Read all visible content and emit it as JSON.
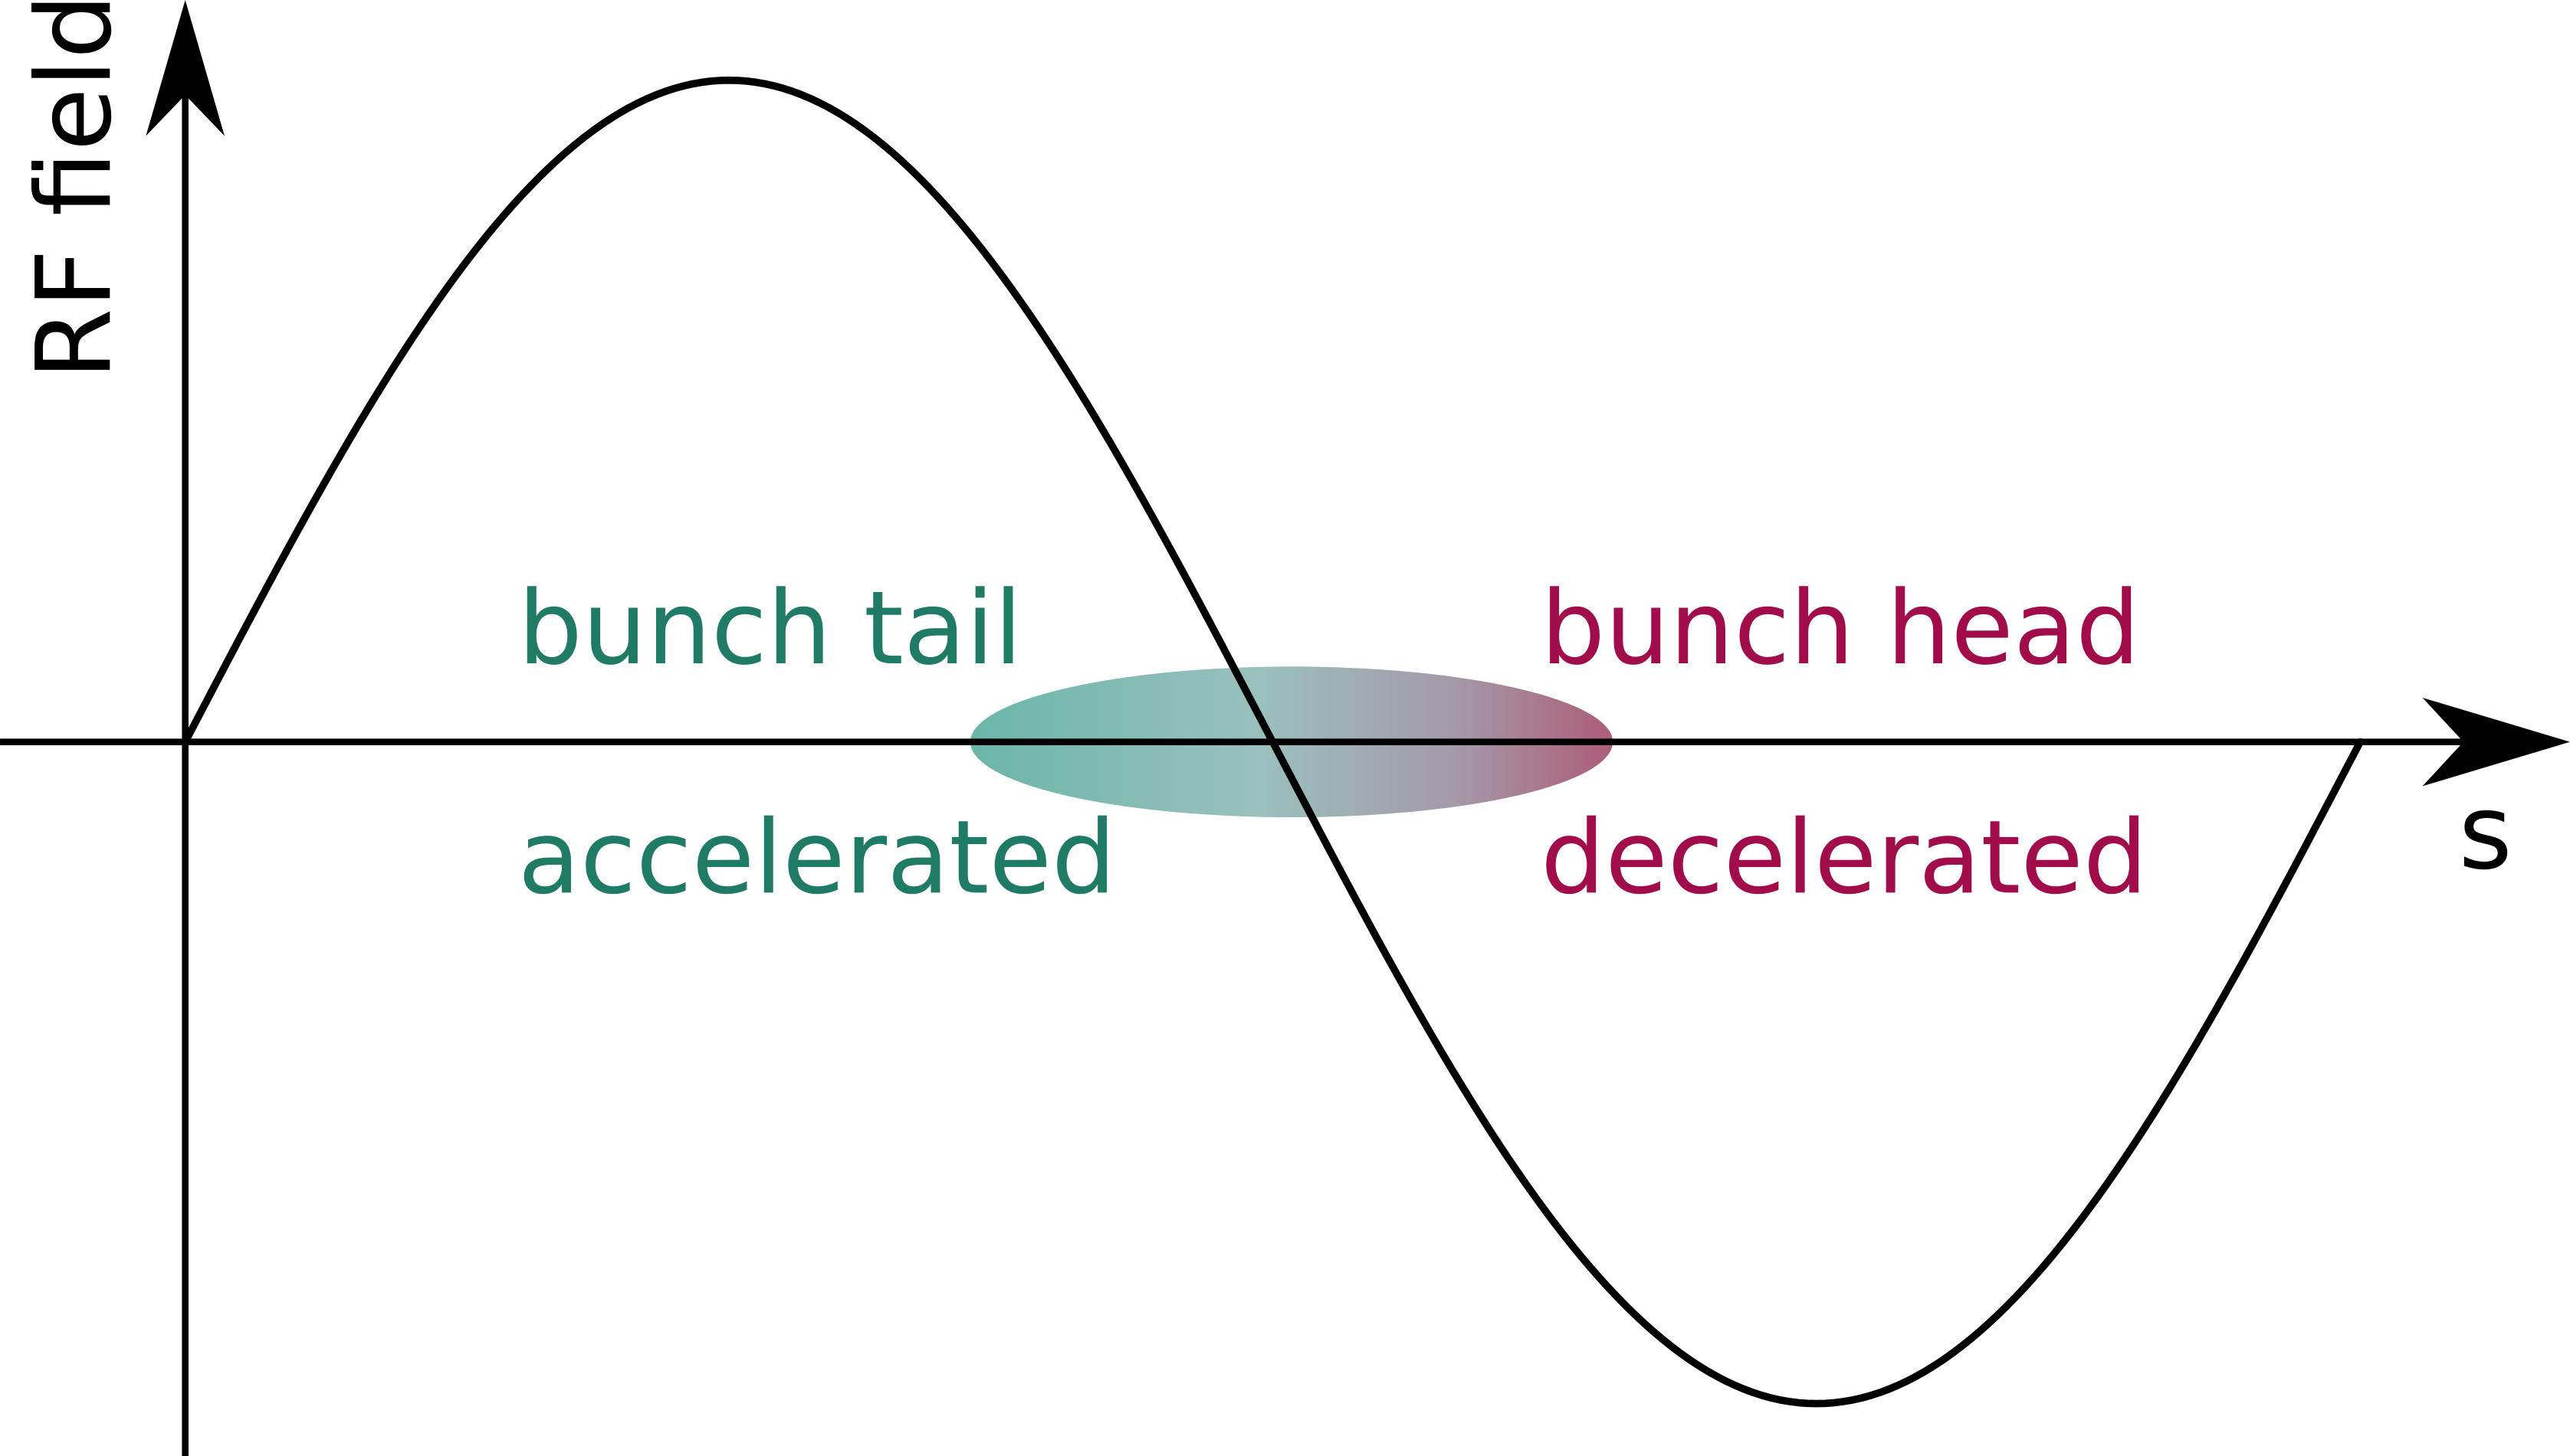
{
  "axes": {
    "y_label": "RF field",
    "x_label": "s"
  },
  "labels": {
    "tail_top": "bunch tail",
    "tail_bottom": "accelerated",
    "head_top": "bunch head",
    "head_bottom": "decelerated"
  },
  "colors": {
    "tail": "#1f7a66",
    "head": "#a10d4a",
    "line": "#000000",
    "bunch_start": "#5aae9e",
    "bunch_mid": "#8fb9b5",
    "bunch_end": "#a44a6a"
  }
}
